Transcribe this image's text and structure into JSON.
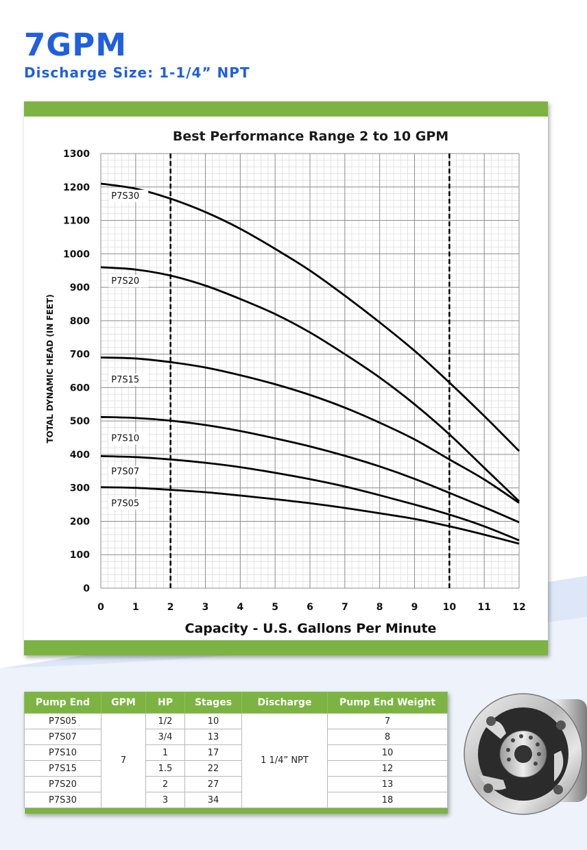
{
  "header": {
    "title": "7GPM",
    "subtitle": "Discharge Size: 1-1/4” NPT"
  },
  "colors": {
    "title_blue": "#1f5fe0",
    "band_green": "#7cb342",
    "curve_black": "#000000",
    "swoosh_blue": "#dde7f8"
  },
  "chart_data": {
    "type": "line",
    "title": "Best Performance Range 2 to 10 GPM",
    "xlabel": "Capacity - U.S. Gallons Per Minute",
    "ylabel": "TOTAL DYNAMIC HEAD (IN FEET)",
    "xlim": [
      0,
      12
    ],
    "ylim": [
      0,
      1300
    ],
    "x_ticks": [
      0,
      1,
      2,
      3,
      4,
      5,
      6,
      7,
      8,
      9,
      10,
      11,
      12
    ],
    "y_ticks": [
      0,
      100,
      200,
      300,
      400,
      500,
      600,
      700,
      800,
      900,
      1000,
      1100,
      1200,
      1300
    ],
    "grid": true,
    "best_range_markers": [
      2,
      10
    ],
    "x": [
      0,
      1,
      2,
      3,
      4,
      5,
      6,
      7,
      8,
      9,
      10,
      11,
      12
    ],
    "series": [
      {
        "name": "P7S30",
        "values": [
          1210,
          1195,
          1165,
          1125,
          1075,
          1015,
          950,
          875,
          795,
          710,
          615,
          515,
          410
        ],
        "label_at": {
          "x": 0.3,
          "y": 1165
        }
      },
      {
        "name": "P7S20",
        "values": [
          960,
          953,
          935,
          905,
          865,
          820,
          765,
          700,
          630,
          550,
          460,
          360,
          260
        ],
        "label_at": {
          "x": 0.3,
          "y": 910
        }
      },
      {
        "name": "P7S15",
        "values": [
          690,
          687,
          676,
          660,
          637,
          610,
          578,
          540,
          495,
          445,
          385,
          325,
          255
        ],
        "label_at": {
          "x": 0.3,
          "y": 615
        }
      },
      {
        "name": "P7S10",
        "values": [
          512,
          509,
          501,
          488,
          470,
          448,
          424,
          396,
          364,
          327,
          285,
          242,
          197
        ],
        "label_at": {
          "x": 0.3,
          "y": 440
        }
      },
      {
        "name": "P7S07",
        "values": [
          395,
          392,
          385,
          375,
          362,
          345,
          326,
          304,
          278,
          250,
          220,
          185,
          143
        ],
        "label_at": {
          "x": 0.3,
          "y": 340
        }
      },
      {
        "name": "P7S05",
        "values": [
          302,
          300,
          294,
          287,
          277,
          266,
          254,
          240,
          224,
          207,
          185,
          160,
          133
        ],
        "label_at": {
          "x": 0.3,
          "y": 245
        }
      }
    ]
  },
  "table": {
    "headers": [
      "Pump End",
      "GPM",
      "HP",
      "Stages",
      "Discharge",
      "Pump End Weight"
    ],
    "gpm": "7",
    "discharge": "1 1/4” NPT",
    "rows": [
      {
        "pump_end": "P7S05",
        "hp": "1/2",
        "stages": "10",
        "weight": "7"
      },
      {
        "pump_end": "P7S07",
        "hp": "3/4",
        "stages": "13",
        "weight": "8"
      },
      {
        "pump_end": "P7S10",
        "hp": "1",
        "stages": "17",
        "weight": "10"
      },
      {
        "pump_end": "P7S15",
        "hp": "1.5",
        "stages": "22",
        "weight": "12"
      },
      {
        "pump_end": "P7S20",
        "hp": "2",
        "stages": "27",
        "weight": "13"
      },
      {
        "pump_end": "P7S30",
        "hp": "3",
        "stages": "34",
        "weight": "18"
      }
    ]
  }
}
